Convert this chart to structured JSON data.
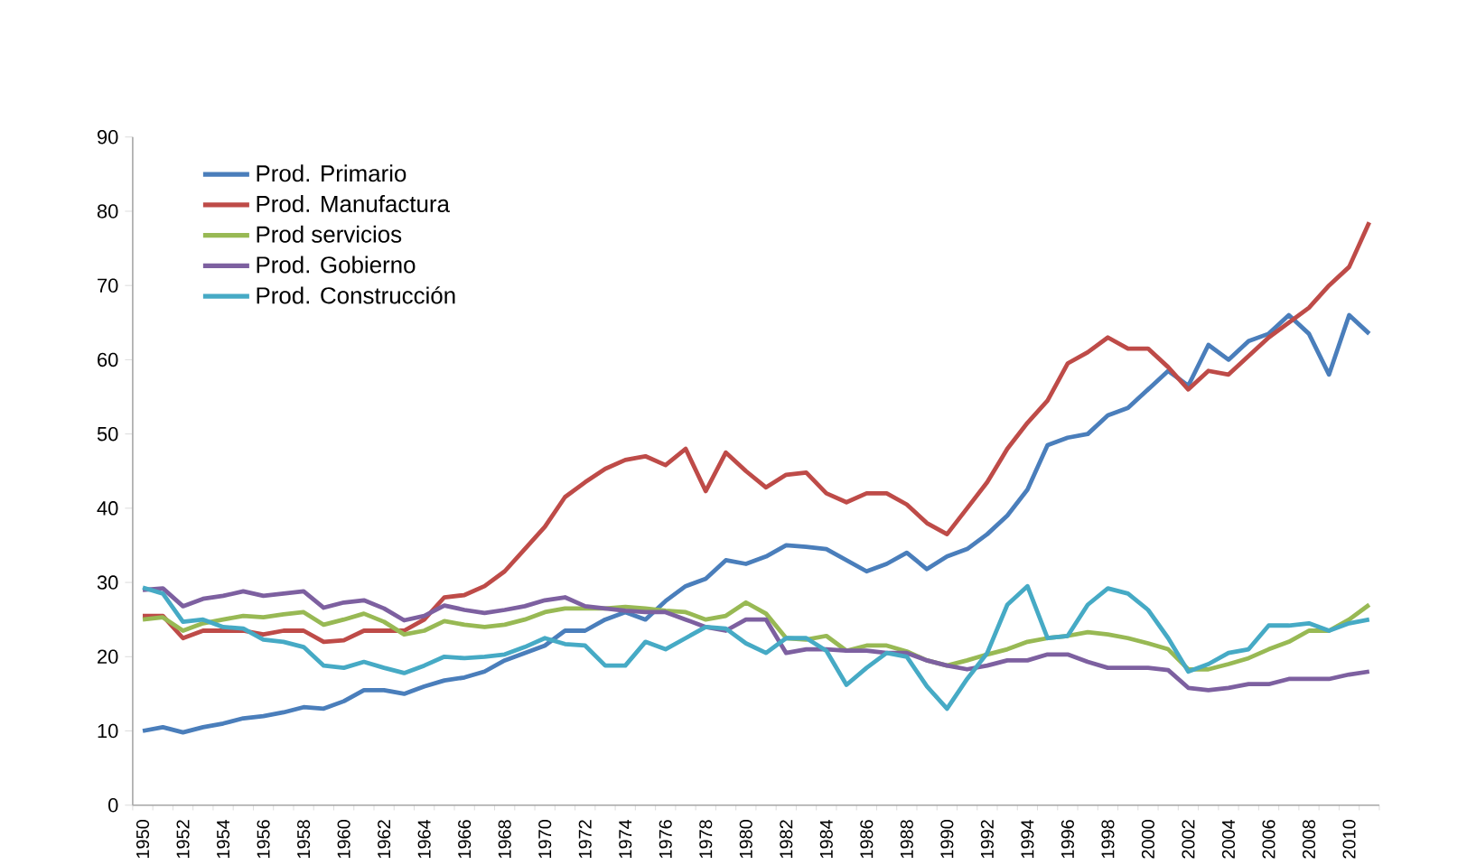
{
  "chart_data": {
    "type": "line",
    "categories": [
      "1950",
      null,
      "1952",
      null,
      "1954",
      null,
      "1956",
      null,
      "1958",
      null,
      "1960",
      null,
      "1962",
      null,
      "1964",
      null,
      "1966",
      null,
      "1968",
      null,
      "1970",
      null,
      "1972",
      null,
      "1974",
      null,
      "1976",
      null,
      "1978",
      null,
      "1980",
      null,
      "1982",
      null,
      "1984",
      null,
      "1986",
      null,
      "1988",
      null,
      "1990",
      null,
      "1992",
      null,
      "1994",
      null,
      "1996",
      null,
      "1998",
      null,
      "2000",
      null,
      "2002",
      null,
      "2004",
      null,
      "2006",
      null,
      "2008",
      null,
      "2010",
      null
    ],
    "series": [
      {
        "name": "Prod. Primario",
        "color": "#4a7ebb",
        "values": [
          10,
          10.5,
          9.8,
          10.5,
          11,
          11.7,
          12,
          12.5,
          13.2,
          13,
          14,
          15.5,
          15.5,
          15,
          16,
          16.8,
          17.2,
          18,
          19.5,
          20.5,
          21.5,
          23.5,
          23.5,
          25,
          26,
          25,
          27.5,
          29.5,
          30.5,
          33,
          32.5,
          33.5,
          35,
          34.8,
          34.5,
          33,
          31.5,
          32.5,
          34,
          31.8,
          33.5,
          34.5,
          36.5,
          39,
          42.5,
          48.5,
          49.5,
          50,
          52.5,
          53.5,
          56,
          58.5,
          56.5,
          62,
          60,
          62.5,
          63.5,
          66,
          63.5,
          58,
          66,
          63.5
        ]
      },
      {
        "name": "Prod. Manufactura",
        "color": "#be4b48",
        "values": [
          25.5,
          25.5,
          22.5,
          23.5,
          23.5,
          23.5,
          23,
          23.5,
          23.5,
          22,
          22.2,
          23.5,
          23.5,
          23.5,
          25,
          28,
          28.3,
          29.5,
          31.5,
          34.5,
          37.5,
          41.5,
          43.5,
          45.3,
          46.5,
          47,
          45.8,
          48,
          42.3,
          47.5,
          45,
          42.8,
          44.5,
          44.8,
          42,
          40.8,
          42,
          42,
          40.5,
          38,
          36.5,
          40,
          43.5,
          48,
          51.5,
          54.5,
          59.5,
          61,
          63,
          61.5,
          61.5,
          59,
          56,
          58.5,
          58,
          60.5,
          63,
          65,
          67,
          70,
          72.5,
          78.5
        ]
      },
      {
        "name": "Prod servicios",
        "color": "#98b954",
        "values": [
          25,
          25.3,
          23.5,
          24.5,
          25,
          25.5,
          25.3,
          25.7,
          26,
          24.3,
          25,
          25.8,
          24.7,
          23,
          23.5,
          24.8,
          24.3,
          24,
          24.3,
          25,
          26,
          26.5,
          26.5,
          26.5,
          26.7,
          26.5,
          26.2,
          26,
          25,
          25.5,
          27.3,
          25.8,
          22.5,
          22.3,
          22.8,
          20.8,
          21.5,
          21.5,
          20.7,
          19.5,
          18.8,
          19.5,
          20.3,
          21,
          22,
          22.5,
          22.8,
          23.3,
          23,
          22.5,
          21.8,
          21,
          18.3,
          18.3,
          19,
          19.8,
          21,
          22,
          23.5,
          23.5,
          25,
          27
        ]
      },
      {
        "name": "Prod. Gobierno",
        "color": "#7d60a0",
        "values": [
          29,
          29.2,
          26.8,
          27.8,
          28.2,
          28.8,
          28.2,
          28.5,
          28.8,
          26.6,
          27.3,
          27.6,
          26.5,
          24.9,
          25.5,
          26.9,
          26.3,
          25.9,
          26.3,
          26.8,
          27.6,
          28,
          26.8,
          26.5,
          26.2,
          26,
          26,
          25,
          24,
          23.5,
          25,
          25,
          20.5,
          21,
          21,
          20.8,
          20.8,
          20.5,
          20.5,
          19.5,
          18.8,
          18.3,
          18.8,
          19.5,
          19.5,
          20.3,
          20.3,
          19.3,
          18.5,
          18.5,
          18.5,
          18.2,
          15.8,
          15.5,
          15.8,
          16.3,
          16.3,
          17,
          17,
          17,
          17.6,
          18
        ]
      },
      {
        "name": "Prod. Construcción",
        "color": "#46aac5",
        "values": [
          29.3,
          28.5,
          24.7,
          25,
          24,
          23.8,
          22.3,
          22,
          21.3,
          18.8,
          18.5,
          19.3,
          18.5,
          17.8,
          18.8,
          20,
          19.8,
          20,
          20.3,
          21.3,
          22.5,
          21.7,
          21.5,
          18.8,
          18.8,
          22,
          21,
          22.5,
          24,
          23.8,
          21.8,
          20.5,
          22.5,
          22.5,
          20.8,
          16.2,
          18.5,
          20.5,
          20,
          16,
          13,
          17,
          20.5,
          27,
          29.5,
          22.5,
          22.8,
          27,
          29.2,
          28.5,
          26.3,
          22.5,
          18,
          19,
          20.5,
          21,
          24.2,
          24.2,
          24.5,
          23.5,
          24.5,
          25
        ]
      }
    ],
    "ylim": [
      0,
      90
    ],
    "yticks": [
      0,
      10,
      20,
      30,
      40,
      50,
      60,
      70,
      80,
      90
    ],
    "grid": false,
    "legend": "top left",
    "marker": "none",
    "line_style": "solid"
  }
}
